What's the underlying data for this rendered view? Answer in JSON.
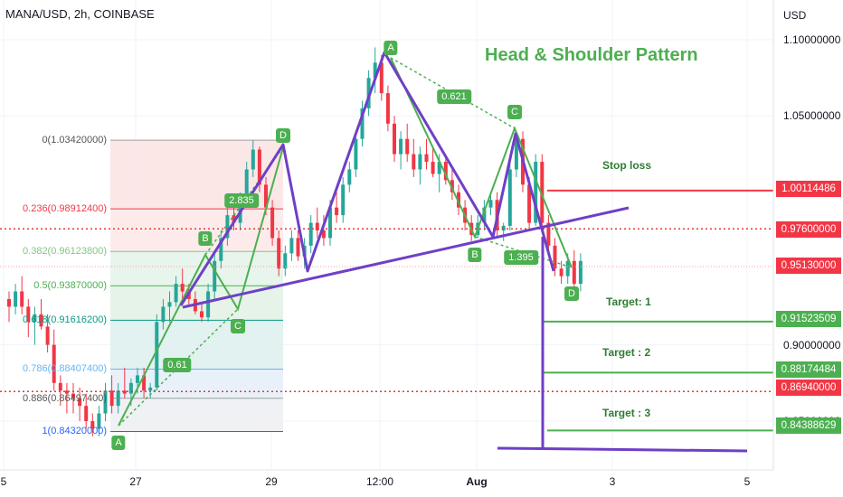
{
  "header": {
    "symbol": "MANA/USD, 2h, COINBASE"
  },
  "pattern_title": "Head & Shoulder Pattern",
  "colors": {
    "bull": "#26a69a",
    "bear": "#f23645",
    "purple": "#6f3fc7",
    "green": "#4caf50",
    "red_dotted": "#e53935"
  },
  "chart_data": {
    "type": "candlestick",
    "y_axis": {
      "currency": "USD",
      "ticks": [
        "1.10000000",
        "1.05000000",
        "0.90000000",
        "0.85000000"
      ],
      "range": [
        0.827,
        1.112
      ]
    },
    "x_axis": {
      "ticks": [
        "5",
        "27",
        "29",
        "12:00",
        "Aug",
        "3",
        "5"
      ]
    },
    "price_labels": {
      "stop_loss": "1.00114486",
      "neckline": "0.97600000",
      "current": "0.95130000",
      "target1": "0.91523509",
      "target2": "0.88174484",
      "entry": "0.86940000",
      "target3": "0.84388629"
    },
    "fibonacci": [
      {
        "label": "0(1.03420000)",
        "value": 1.0342
      },
      {
        "label": "0.236(0.98912400)",
        "value": 0.989124
      },
      {
        "label": "0.382(0.96123800)",
        "value": 0.961238
      },
      {
        "label": "0.5(0.93870000)",
        "value": 0.9387
      },
      {
        "label": "0.618(0.91616200)",
        "value": 0.916162
      },
      {
        "label": "0.786(0.88407400)",
        "value": 0.884074
      },
      {
        "label": "0.886(0.86497400)",
        "value": 0.864974
      },
      {
        "label": "1(0.84320000)",
        "value": 0.8432
      }
    ],
    "annotations": {
      "stop_loss": "Stop loss",
      "target1": "Target: 1",
      "target2": "Target : 2",
      "target3": "Target : 3",
      "harmonic1_points": [
        "A",
        "B",
        "C",
        "D"
      ],
      "harmonic1_ratios": [
        "2.835",
        "0.61"
      ],
      "harmonic2_points": [
        "A",
        "B",
        "C",
        "D"
      ],
      "harmonic2_ratios": [
        "0.621",
        "1.395"
      ]
    },
    "candles": [
      [
        0.93,
        0.935,
        0.915,
        0.925
      ],
      [
        0.925,
        0.94,
        0.92,
        0.935
      ],
      [
        0.935,
        0.945,
        0.92,
        0.925
      ],
      [
        0.925,
        0.93,
        0.905,
        0.915
      ],
      [
        0.915,
        0.925,
        0.9,
        0.92
      ],
      [
        0.92,
        0.93,
        0.91,
        0.912
      ],
      [
        0.912,
        0.92,
        0.895,
        0.9
      ],
      [
        0.9,
        0.91,
        0.87,
        0.875
      ],
      [
        0.875,
        0.88,
        0.86,
        0.87
      ],
      [
        0.87,
        0.875,
        0.855,
        0.868
      ],
      [
        0.868,
        0.875,
        0.855,
        0.865
      ],
      [
        0.865,
        0.872,
        0.85,
        0.86
      ],
      [
        0.86,
        0.868,
        0.845,
        0.85
      ],
      [
        0.85,
        0.855,
        0.84,
        0.845
      ],
      [
        0.845,
        0.86,
        0.84,
        0.855
      ],
      [
        0.855,
        0.875,
        0.85,
        0.87
      ],
      [
        0.87,
        0.88,
        0.855,
        0.86
      ],
      [
        0.86,
        0.875,
        0.855,
        0.87
      ],
      [
        0.87,
        0.885,
        0.865,
        0.868
      ],
      [
        0.868,
        0.878,
        0.86,
        0.875
      ],
      [
        0.875,
        0.885,
        0.868,
        0.88
      ],
      [
        0.88,
        0.885,
        0.865,
        0.87
      ],
      [
        0.87,
        0.875,
        0.865,
        0.872
      ],
      [
        0.872,
        0.92,
        0.87,
        0.915
      ],
      [
        0.915,
        0.93,
        0.91,
        0.925
      ],
      [
        0.925,
        0.935,
        0.915,
        0.928
      ],
      [
        0.928,
        0.945,
        0.925,
        0.94
      ],
      [
        0.94,
        0.95,
        0.93,
        0.935
      ],
      [
        0.935,
        0.94,
        0.925,
        0.93
      ],
      [
        0.93,
        0.935,
        0.92,
        0.922
      ],
      [
        0.922,
        0.928,
        0.915,
        0.918
      ],
      [
        0.918,
        0.94,
        0.915,
        0.935
      ],
      [
        0.935,
        0.96,
        0.93,
        0.955
      ],
      [
        0.955,
        0.975,
        0.95,
        0.97
      ],
      [
        0.97,
        0.99,
        0.965,
        0.985
      ],
      [
        0.985,
        0.99,
        0.975,
        0.98
      ],
      [
        0.98,
        1.0,
        0.975,
        0.995
      ],
      [
        0.995,
        1.02,
        0.99,
        1.015
      ],
      [
        1.015,
        1.034,
        1.01,
        1.028
      ],
      [
        1.028,
        1.03,
        1.0,
        1.005
      ],
      [
        1.005,
        1.01,
        0.985,
        0.99
      ],
      [
        0.99,
        0.995,
        0.965,
        0.97
      ],
      [
        0.97,
        0.975,
        0.945,
        0.95
      ],
      [
        0.95,
        0.965,
        0.945,
        0.96
      ],
      [
        0.96,
        0.975,
        0.955,
        0.97
      ],
      [
        0.97,
        0.975,
        0.955,
        0.958
      ],
      [
        0.958,
        0.97,
        0.95,
        0.965
      ],
      [
        0.965,
        0.985,
        0.96,
        0.98
      ],
      [
        0.98,
        0.99,
        0.97,
        0.975
      ],
      [
        0.975,
        0.985,
        0.965,
        0.97
      ],
      [
        0.97,
        0.995,
        0.965,
        0.99
      ],
      [
        0.99,
        1.0,
        0.98,
        0.985
      ],
      [
        0.985,
        1.01,
        0.98,
        1.005
      ],
      [
        1.005,
        1.02,
        1.0,
        1.015
      ],
      [
        1.015,
        1.04,
        1.01,
        1.035
      ],
      [
        1.035,
        1.06,
        1.03,
        1.055
      ],
      [
        1.055,
        1.08,
        1.05,
        1.075
      ],
      [
        1.075,
        1.095,
        1.065,
        1.085
      ],
      [
        1.085,
        1.09,
        1.06,
        1.065
      ],
      [
        1.065,
        1.07,
        1.04,
        1.045
      ],
      [
        1.045,
        1.05,
        1.02,
        1.025
      ],
      [
        1.025,
        1.04,
        1.015,
        1.035
      ],
      [
        1.035,
        1.045,
        1.02,
        1.025
      ],
      [
        1.025,
        1.035,
        1.01,
        1.015
      ],
      [
        1.015,
        1.03,
        1.005,
        1.025
      ],
      [
        1.025,
        1.035,
        1.015,
        1.02
      ],
      [
        1.02,
        1.03,
        1.01,
        1.012
      ],
      [
        1.012,
        1.025,
        1.0,
        1.02
      ],
      [
        1.02,
        1.025,
        1.005,
        1.008
      ],
      [
        1.008,
        1.015,
        0.995,
        1.0
      ],
      [
        1.0,
        1.005,
        0.985,
        0.99
      ],
      [
        0.99,
        0.995,
        0.975,
        0.98
      ],
      [
        0.98,
        0.985,
        0.968,
        0.972
      ],
      [
        0.972,
        0.985,
        0.97,
        0.98
      ],
      [
        0.98,
        0.995,
        0.975,
        0.99
      ],
      [
        0.99,
        1.0,
        0.985,
        0.995
      ],
      [
        0.995,
        1.0,
        0.97,
        0.975
      ],
      [
        0.975,
        0.98,
        0.968,
        0.978
      ],
      [
        0.978,
        1.02,
        0.975,
        1.015
      ],
      [
        1.015,
        1.04,
        1.01,
        1.035
      ],
      [
        1.035,
        1.04,
        1.0,
        1.005
      ],
      [
        1.005,
        1.01,
        0.975,
        0.98
      ],
      [
        0.98,
        1.025,
        0.978,
        1.02
      ],
      [
        1.02,
        1.025,
        0.975,
        0.98
      ],
      [
        0.98,
        0.985,
        0.96,
        0.965
      ],
      [
        0.965,
        0.97,
        0.945,
        0.95
      ],
      [
        0.95,
        0.955,
        0.94,
        0.945
      ],
      [
        0.945,
        0.96,
        0.94,
        0.955
      ],
      [
        0.955,
        0.962,
        0.935,
        0.94
      ],
      [
        0.94,
        0.96,
        0.935,
        0.955
      ]
    ]
  }
}
